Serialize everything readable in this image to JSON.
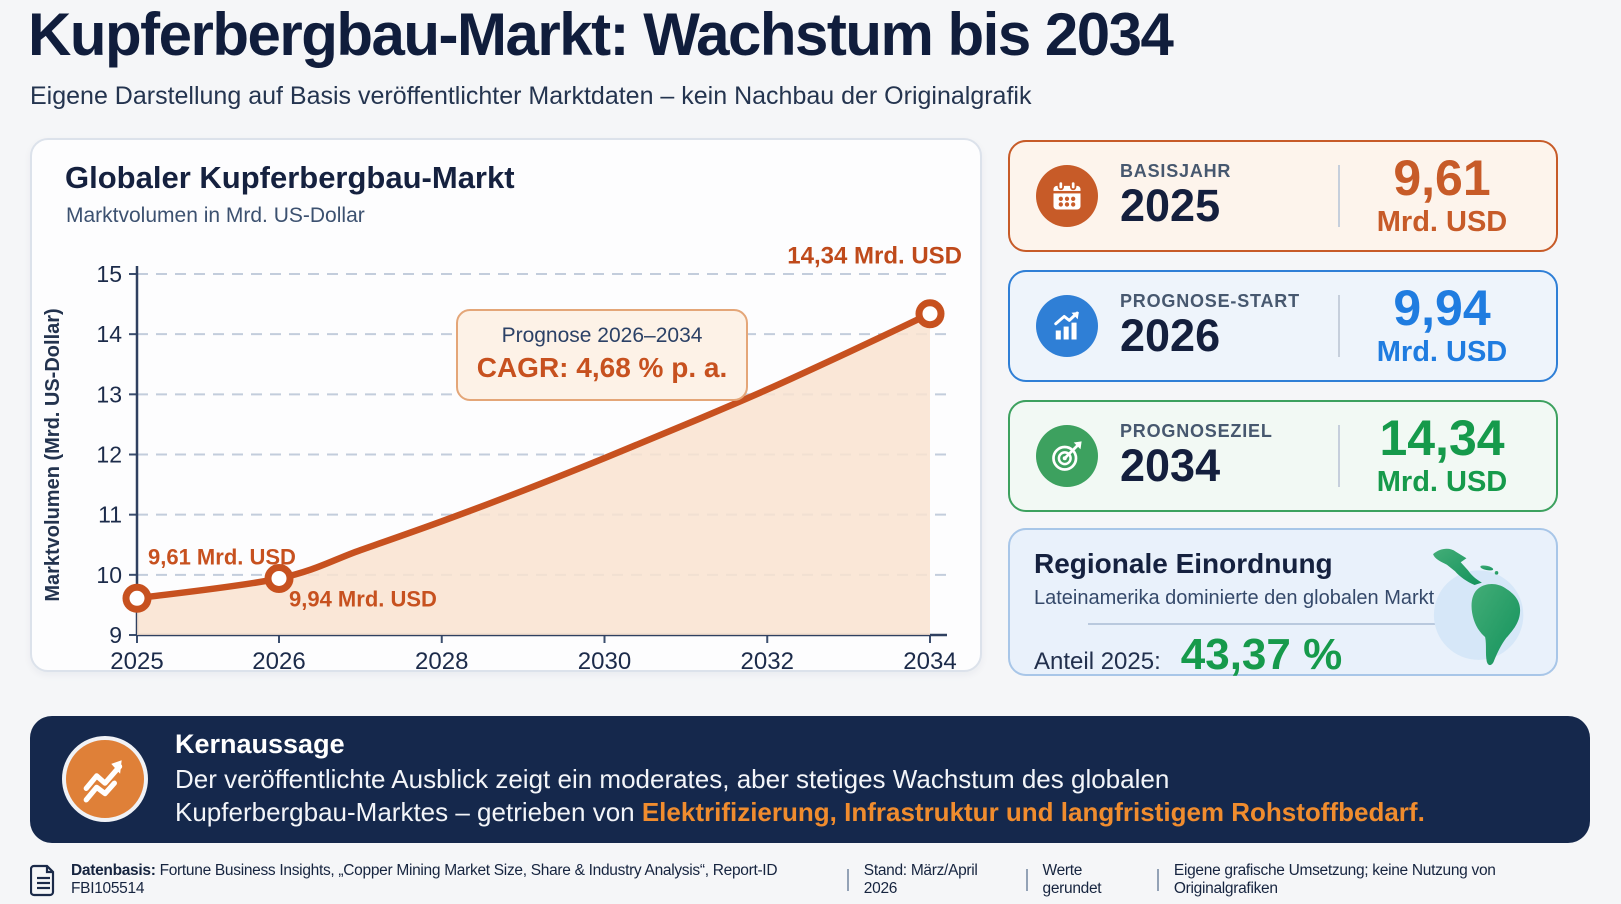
{
  "page": {
    "title": "Kupferbergbau-Markt: Wachstum bis 2034",
    "subtitle": "Eigene Darstellung auf Basis veröffentlichter Marktdaten – kein Nachbau der Originalgrafik"
  },
  "chart_panel": {
    "title": "Globaler Kupferbergbau-Markt",
    "subtitle": "Marktvolumen in Mrd. US-Dollar"
  },
  "chart_data": {
    "type": "line",
    "title": "Globaler Kupferbergbau-Markt",
    "subtitle": "Marktvolumen in Mrd. US-Dollar",
    "ylabel": "Marktvolumen (Mrd. US-Dollar)",
    "x": [
      2025,
      2026,
      2027,
      2028,
      2029,
      2030,
      2031,
      2032,
      2033,
      2034
    ],
    "y": [
      9.61,
      9.94,
      10.41,
      10.89,
      11.4,
      11.94,
      12.5,
      13.08,
      13.7,
      14.34
    ],
    "ylim": [
      9,
      15
    ],
    "yticks": [
      9,
      10,
      11,
      12,
      13,
      14,
      15
    ],
    "xticks": [
      2025,
      2026,
      2028,
      2030,
      2032,
      2034
    ],
    "grid": "horizontal-dashed",
    "line_color": "#c7511f",
    "fill_color": "#f9e3d0",
    "point_labels": [
      {
        "x": 2025,
        "text": "9,61 Mrd. USD"
      },
      {
        "x": 2026,
        "text": "9,94 Mrd. USD"
      },
      {
        "x": 2034,
        "text": "14,34 Mrd. USD"
      }
    ],
    "annotation": {
      "line1": "Prognose 2026–2034",
      "line2": "CAGR: 4,68 % p. a."
    }
  },
  "stat_cards": [
    {
      "icon": "calendar-icon",
      "label": "BASISJAHR",
      "year": "2025",
      "value": "9,61",
      "unit": "Mrd. USD",
      "accent": "#c75b28",
      "accent_bg": "#fdf4ec",
      "value_color": "#c75b28"
    },
    {
      "icon": "bar-chart-icon",
      "label": "PROGNOSE-START",
      "year": "2026",
      "value": "9,94",
      "unit": "Mrd. USD",
      "accent": "#2f7fd6",
      "accent_bg": "#eef4fb",
      "value_color": "#1f7ce0"
    },
    {
      "icon": "target-icon",
      "label": "PROGNOSEZIEL",
      "year": "2034",
      "value": "14,34",
      "unit": "Mrd. USD",
      "accent": "#3da15f",
      "accent_bg": "#f2f9f4",
      "value_color": "#169a4b"
    }
  ],
  "region_card": {
    "title": "Regionale Einordnung",
    "subtitle": "Lateinamerika dominierte den globalen Markt.",
    "share_label": "Anteil 2025:",
    "share_value": "43,37 %",
    "share_color": "#169a4b",
    "map_icon": "latin-america-map"
  },
  "key_message": {
    "title": "Kernaussage",
    "line1": "Der veröffentlichte Ausblick zeigt ein moderates, aber stetiges Wachstum des globalen",
    "line2_prefix": "Kupferbergbau-Marktes – getrieben von ",
    "line2_highlight": "Elektrifizierung, Infrastruktur und langfristigem Rohstoffbedarf.",
    "highlight_color": "#f08c2e",
    "icon": "trend-up-icon"
  },
  "footer": {
    "source_label": "Datenbasis:",
    "source_text": " Fortune Business Insights, „Copper Mining Market Size, Share & Industry Analysis“, Report-ID FBI105514",
    "items": [
      "Stand: März/April 2026",
      "Werte gerundet",
      "Eigene grafische Umsetzung; keine Nutzung von Originalgrafiken"
    ],
    "icon": "document-icon"
  }
}
